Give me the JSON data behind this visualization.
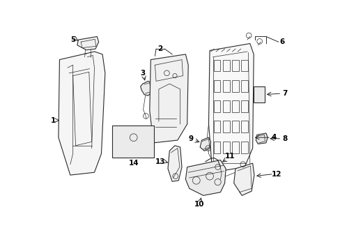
{
  "background_color": "#ffffff",
  "fig_width": 4.89,
  "fig_height": 3.6,
  "dpi": 100,
  "line_color": "#2a2a2a",
  "label_color": "#000000",
  "label_fontsize": 7.5,
  "fill_light": "#e8e8e8",
  "fill_medium": "#d0d0d0"
}
